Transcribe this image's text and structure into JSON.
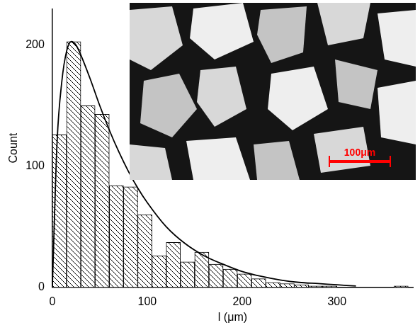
{
  "chart_data": {
    "type": "histogram",
    "x_label": "l (μm)",
    "y_label": "Count",
    "bins": [
      0,
      15,
      30,
      45,
      60,
      75,
      90,
      105,
      120,
      135,
      150,
      165,
      180,
      195,
      210,
      225,
      240,
      255,
      270,
      285,
      300,
      315,
      330,
      345,
      360,
      375
    ],
    "values": [
      126,
      203,
      150,
      143,
      84,
      83,
      60,
      26,
      37,
      21,
      29,
      19,
      15,
      11,
      7,
      4,
      3,
      2,
      1,
      1,
      0,
      0,
      0,
      0,
      1
    ],
    "color": "#000000",
    "curve": {
      "type": "line",
      "color": "#000000",
      "x": [
        0,
        5,
        10,
        15,
        20,
        25,
        30,
        40,
        50,
        60,
        70,
        80,
        90,
        100,
        120,
        140,
        160,
        180,
        200,
        220,
        240,
        260,
        280,
        300,
        320
      ],
      "values": [
        0,
        120,
        170,
        195,
        203,
        200,
        192,
        172,
        150,
        130,
        112,
        96,
        82,
        70,
        50,
        36,
        26,
        19,
        13,
        9,
        6,
        4,
        3,
        2,
        1
      ]
    },
    "annotations": [
      {
        "text": "100μm",
        "color": "#ff0000"
      }
    ],
    "xlim": [
      0,
      380
    ],
    "xticks": [
      0,
      100,
      200,
      300
    ],
    "ylim": [
      0,
      230
    ],
    "yticks": [
      0,
      100,
      200
    ],
    "grid": false
  }
}
